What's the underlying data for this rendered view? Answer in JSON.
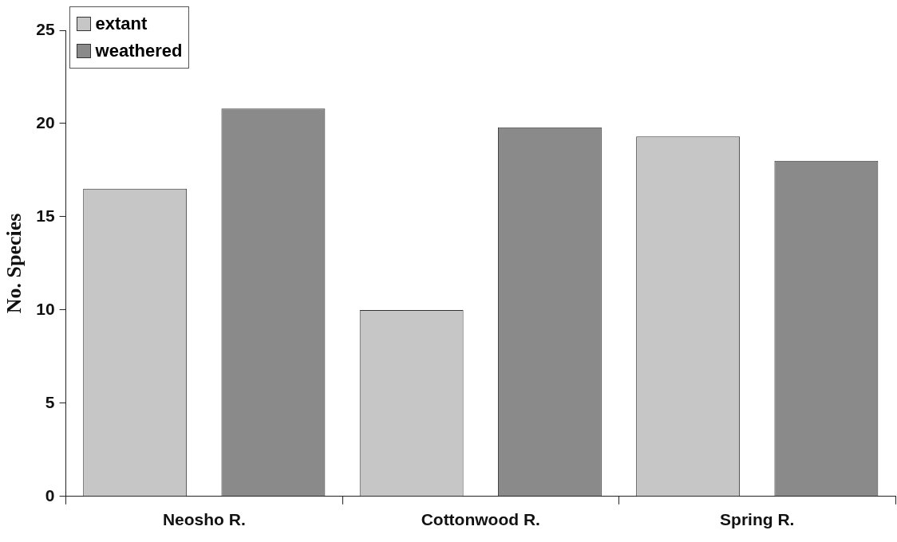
{
  "chart_data": {
    "type": "bar",
    "ylabel": "No. Species",
    "categories": [
      "Neosho R.",
      "Cottonwood R.",
      "Spring R."
    ],
    "series": [
      {
        "name": "extant",
        "color": "#c6c6c6",
        "values": [
          16.5,
          10.0,
          19.3
        ]
      },
      {
        "name": "weathered",
        "color": "#8a8a8a",
        "values": [
          20.8,
          19.8,
          18.0
        ]
      }
    ],
    "ylim": [
      0,
      25
    ],
    "yticks": [
      0,
      5,
      10,
      15,
      20,
      25
    ],
    "grid": false,
    "legend": "top left"
  }
}
